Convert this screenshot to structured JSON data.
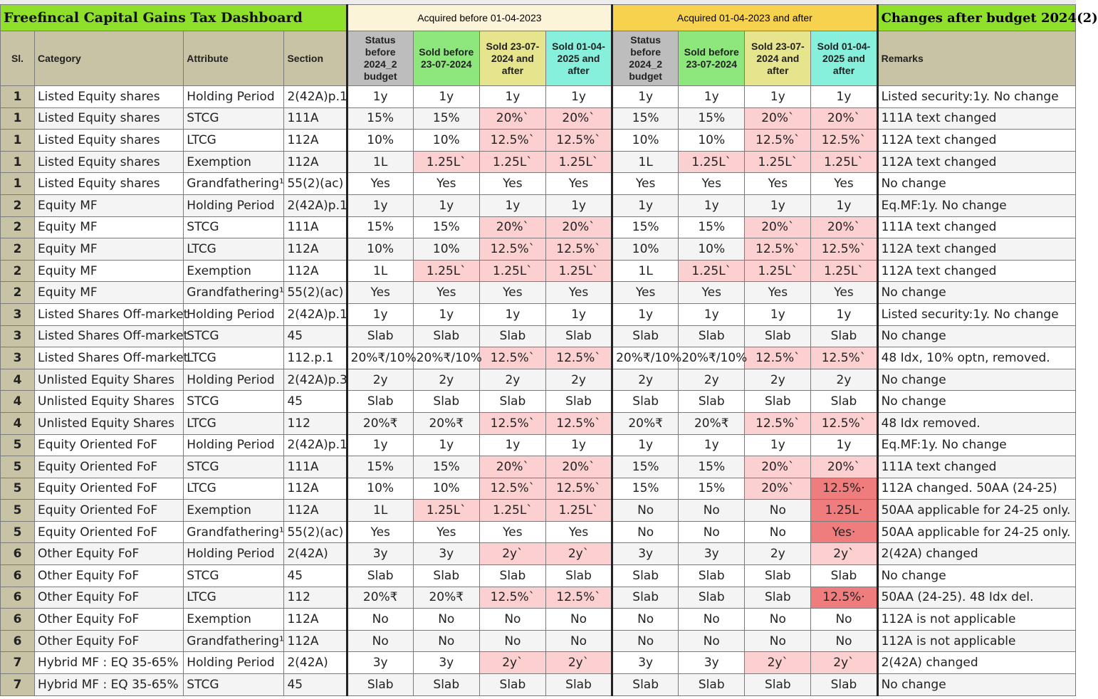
{
  "title": "Freefincal Capital Gains Tax Dashboard",
  "group_before": "Acquired before 01-04-2023",
  "group_after": "Acquired 01-04-2023 and after",
  "changes_title": "Changes after budget 2024(2)",
  "headers": {
    "sl": "Sl.",
    "category": "Category",
    "attribute": "Attribute",
    "section": "Section",
    "status": "Status before 2024_2 budget",
    "sold1": "Sold before 23-07-2024",
    "sold2": "Sold 23-07-2024 and after",
    "sold3": "Sold 01-04-2025 and after",
    "remarks": "Remarks"
  },
  "colors": {
    "title_green": "#8ee02a",
    "pink": "#fcd0d0",
    "red": "#f07d7d",
    "status_gray": "#bdbdbd",
    "sold_green": "#8ee77c",
    "sold_yellow": "#e6e48c",
    "sold_cyan": "#87f0dc"
  },
  "rows": [
    {
      "sl": "1",
      "category": "Listed Equity shares",
      "attribute": "Holding Period",
      "section": "2(42A)p.1",
      "v": [
        "1y",
        "1y",
        "1y",
        "1y",
        "1y",
        "1y",
        "1y",
        "1y"
      ],
      "remarks": "Listed security:1y. No change"
    },
    {
      "sl": "1",
      "category": "Listed Equity shares",
      "attribute": "STCG",
      "section": "111A",
      "v": [
        "15%",
        "15%",
        "20%`",
        "20%`",
        "15%",
        "15%",
        "20%`",
        "20%`"
      ],
      "remarks": "111A text changed"
    },
    {
      "sl": "1",
      "category": "Listed Equity shares",
      "attribute": "LTCG",
      "section": "112A",
      "v": [
        "10%",
        "10%",
        "12.5%`",
        "12.5%`",
        "10%",
        "10%",
        "12.5%`",
        "12.5%`"
      ],
      "remarks": "112A text changed"
    },
    {
      "sl": "1",
      "category": "Listed Equity shares",
      "attribute": "Exemption",
      "section": "112A",
      "v": [
        "1L",
        "1.25L`",
        "1.25L`",
        "1.25L`",
        "1L",
        "1.25L`",
        "1.25L`",
        "1.25L`"
      ],
      "remarks": "112A text changed"
    },
    {
      "sl": "1",
      "category": "Listed Equity shares",
      "attribute": "Grandfathering¹",
      "section": "55(2)(ac)",
      "v": [
        "Yes",
        "Yes",
        "Yes",
        "Yes",
        "Yes",
        "Yes",
        "Yes",
        "Yes"
      ],
      "remarks": "No change"
    },
    {
      "sl": "2",
      "category": "Equity MF",
      "attribute": "Holding Period",
      "section": "2(42A)p.1",
      "v": [
        "1y",
        "1y",
        "1y",
        "1y",
        "1y",
        "1y",
        "1y",
        "1y"
      ],
      "remarks": "Eq.MF:1y. No change"
    },
    {
      "sl": "2",
      "category": "Equity MF",
      "attribute": "STCG",
      "section": "111A",
      "v": [
        "15%",
        "15%",
        "20%`",
        "20%`",
        "15%",
        "15%",
        "20%`",
        "20%`"
      ],
      "remarks": "111A text changed"
    },
    {
      "sl": "2",
      "category": "Equity MF",
      "attribute": "LTCG",
      "section": "112A",
      "v": [
        "10%",
        "10%",
        "12.5%`",
        "12.5%`",
        "10%",
        "10%",
        "12.5%`",
        "12.5%`"
      ],
      "remarks": "112A text changed"
    },
    {
      "sl": "2",
      "category": "Equity MF",
      "attribute": "Exemption",
      "section": "112A",
      "v": [
        "1L",
        "1.25L`",
        "1.25L`",
        "1.25L`",
        "1L",
        "1.25L`",
        "1.25L`",
        "1.25L`"
      ],
      "remarks": "112A text changed"
    },
    {
      "sl": "2",
      "category": "Equity MF",
      "attribute": "Grandfathering¹",
      "section": "55(2)(ac)",
      "v": [
        "Yes",
        "Yes",
        "Yes",
        "Yes",
        "Yes",
        "Yes",
        "Yes",
        "Yes"
      ],
      "remarks": "No change"
    },
    {
      "sl": "3",
      "category": "Listed Shares Off-market",
      "attribute": "Holding Period",
      "section": "2(42A)p.1",
      "v": [
        "1y",
        "1y",
        "1y",
        "1y",
        "1y",
        "1y",
        "1y",
        "1y"
      ],
      "remarks": "Listed security:1y. No change"
    },
    {
      "sl": "3",
      "category": "Listed Shares Off-market",
      "attribute": "STCG",
      "section": "45",
      "v": [
        "Slab",
        "Slab",
        "Slab",
        "Slab",
        "Slab",
        "Slab",
        "Slab",
        "Slab"
      ],
      "remarks": "No change"
    },
    {
      "sl": "3",
      "category": "Listed Shares Off-market",
      "attribute": "LTCG",
      "section": "112.p.1",
      "v": [
        "20%₹/10%",
        "20%₹/10%",
        "12.5%`",
        "12.5%`",
        "20%₹/10%",
        "20%₹/10%",
        "12.5%`",
        "12.5%`"
      ],
      "remarks": "48 Idx, 10% optn, removed."
    },
    {
      "sl": "4",
      "category": "Unlisted Equity Shares",
      "attribute": "Holding Period",
      "section": "2(42A)p.3",
      "v": [
        "2y",
        "2y",
        "2y",
        "2y",
        "2y",
        "2y",
        "2y",
        "2y"
      ],
      "remarks": "No change"
    },
    {
      "sl": "4",
      "category": "Unlisted Equity Shares",
      "attribute": "STCG",
      "section": "45",
      "v": [
        "Slab",
        "Slab",
        "Slab",
        "Slab",
        "Slab",
        "Slab",
        "Slab",
        "Slab"
      ],
      "remarks": "No change"
    },
    {
      "sl": "4",
      "category": "Unlisted Equity Shares",
      "attribute": "LTCG",
      "section": "112",
      "v": [
        "20%₹",
        "20%₹",
        "12.5%`",
        "12.5%`",
        "20%₹",
        "20%₹",
        "12.5%`",
        "12.5%`"
      ],
      "remarks": "48 Idx removed."
    },
    {
      "sl": "5",
      "category": "Equity Oriented FoF",
      "attribute": "Holding Period",
      "section": "2(42A)p.1",
      "v": [
        "1y",
        "1y",
        "1y",
        "1y",
        "1y",
        "1y",
        "1y",
        "1y"
      ],
      "remarks": "Eq.MF:1y. No change"
    },
    {
      "sl": "5",
      "category": "Equity Oriented FoF",
      "attribute": "STCG",
      "section": "111A",
      "v": [
        "15%",
        "15%",
        "20%`",
        "20%`",
        "15%",
        "15%",
        "20%`",
        "20%`"
      ],
      "remarks": "111A text changed"
    },
    {
      "sl": "5",
      "category": "Equity Oriented FoF",
      "attribute": "LTCG",
      "section": "112A",
      "v": [
        "10%",
        "10%",
        "12.5%`",
        "12.5%`",
        "15%",
        "15%",
        "20%`",
        "12.5%·"
      ],
      "remarks": "112A changed. 50AA (24-25)"
    },
    {
      "sl": "5",
      "category": "Equity Oriented FoF",
      "attribute": "Exemption",
      "section": "112A",
      "v": [
        "1L",
        "1.25L`",
        "1.25L`",
        "1.25L`",
        "No",
        "No",
        "No",
        "1.25L·"
      ],
      "remarks": "50AA applicable for 24-25 only."
    },
    {
      "sl": "5",
      "category": "Equity Oriented FoF",
      "attribute": "Grandfathering¹",
      "section": "55(2)(ac)",
      "v": [
        "Yes",
        "Yes",
        "Yes",
        "Yes",
        "No",
        "No",
        "No",
        "Yes·"
      ],
      "remarks": "50AA applicable for 24-25 only."
    },
    {
      "sl": "6",
      "category": "Other Equity FoF",
      "attribute": "Holding Period",
      "section": "2(42A)",
      "v": [
        "3y",
        "3y",
        "2y`",
        "2y`",
        "3y",
        "3y",
        "2y",
        "2y`"
      ],
      "remarks": "2(42A) changed"
    },
    {
      "sl": "6",
      "category": "Other Equity FoF",
      "attribute": "STCG",
      "section": "45",
      "v": [
        "Slab",
        "Slab",
        "Slab",
        "Slab",
        "Slab",
        "Slab",
        "Slab",
        "Slab"
      ],
      "remarks": "No change"
    },
    {
      "sl": "6",
      "category": "Other Equity FoF",
      "attribute": "LTCG",
      "section": "112",
      "v": [
        "20%₹",
        "20%₹",
        "12.5%`",
        "12.5%`",
        "Slab",
        "Slab",
        "Slab",
        "12.5%·"
      ],
      "remarks": "50AA (24-25). 48 Idx del."
    },
    {
      "sl": "6",
      "category": "Other Equity FoF",
      "attribute": "Exemption",
      "section": "112A",
      "v": [
        "No",
        "No",
        "No",
        "No",
        "No",
        "No",
        "No",
        "No"
      ],
      "remarks": "112A is not applicable"
    },
    {
      "sl": "6",
      "category": "Other Equity FoF",
      "attribute": "Grandfathering¹",
      "section": "112A",
      "v": [
        "No",
        "No",
        "No",
        "No",
        "No",
        "No",
        "No",
        "No"
      ],
      "remarks": "112A is not applicable"
    },
    {
      "sl": "7",
      "category": "Hybrid MF : EQ 35-65%",
      "attribute": "Holding Period",
      "section": "2(42A)",
      "v": [
        "3y",
        "3y",
        "2y`",
        "2y`",
        "3y",
        "3y",
        "2y`",
        "2y`"
      ],
      "remarks": "2(42A) changed"
    },
    {
      "sl": "7",
      "category": "Hybrid MF : EQ 35-65%",
      "attribute": "STCG",
      "section": "45",
      "v": [
        "Slab",
        "Slab",
        "Slab",
        "Slab",
        "Slab",
        "Slab",
        "Slab",
        "Slab"
      ],
      "remarks": "No change"
    }
  ],
  "highlight": {
    "pink": [
      [
        1,
        2
      ],
      [
        1,
        3
      ],
      [
        1,
        6
      ],
      [
        1,
        7
      ],
      [
        2,
        2
      ],
      [
        2,
        3
      ],
      [
        2,
        6
      ],
      [
        2,
        7
      ],
      [
        3,
        1
      ],
      [
        3,
        2
      ],
      [
        3,
        3
      ],
      [
        3,
        5
      ],
      [
        3,
        6
      ],
      [
        3,
        7
      ],
      [
        6,
        2
      ],
      [
        6,
        3
      ],
      [
        6,
        6
      ],
      [
        6,
        7
      ],
      [
        7,
        2
      ],
      [
        7,
        3
      ],
      [
        7,
        6
      ],
      [
        7,
        7
      ],
      [
        8,
        1
      ],
      [
        8,
        2
      ],
      [
        8,
        3
      ],
      [
        8,
        5
      ],
      [
        8,
        6
      ],
      [
        8,
        7
      ],
      [
        12,
        2
      ],
      [
        12,
        3
      ],
      [
        12,
        6
      ],
      [
        12,
        7
      ],
      [
        15,
        2
      ],
      [
        15,
        3
      ],
      [
        15,
        6
      ],
      [
        15,
        7
      ],
      [
        17,
        2
      ],
      [
        17,
        3
      ],
      [
        17,
        6
      ],
      [
        17,
        7
      ],
      [
        18,
        2
      ],
      [
        18,
        3
      ],
      [
        18,
        6
      ],
      [
        19,
        1
      ],
      [
        19,
        2
      ],
      [
        19,
        3
      ],
      [
        21,
        2
      ],
      [
        21,
        3
      ],
      [
        21,
        7
      ],
      [
        23,
        2
      ],
      [
        23,
        3
      ],
      [
        26,
        2
      ],
      [
        26,
        3
      ],
      [
        26,
        6
      ],
      [
        26,
        7
      ]
    ],
    "red": [
      [
        18,
        7
      ],
      [
        19,
        7
      ],
      [
        20,
        7
      ],
      [
        23,
        7
      ]
    ]
  }
}
